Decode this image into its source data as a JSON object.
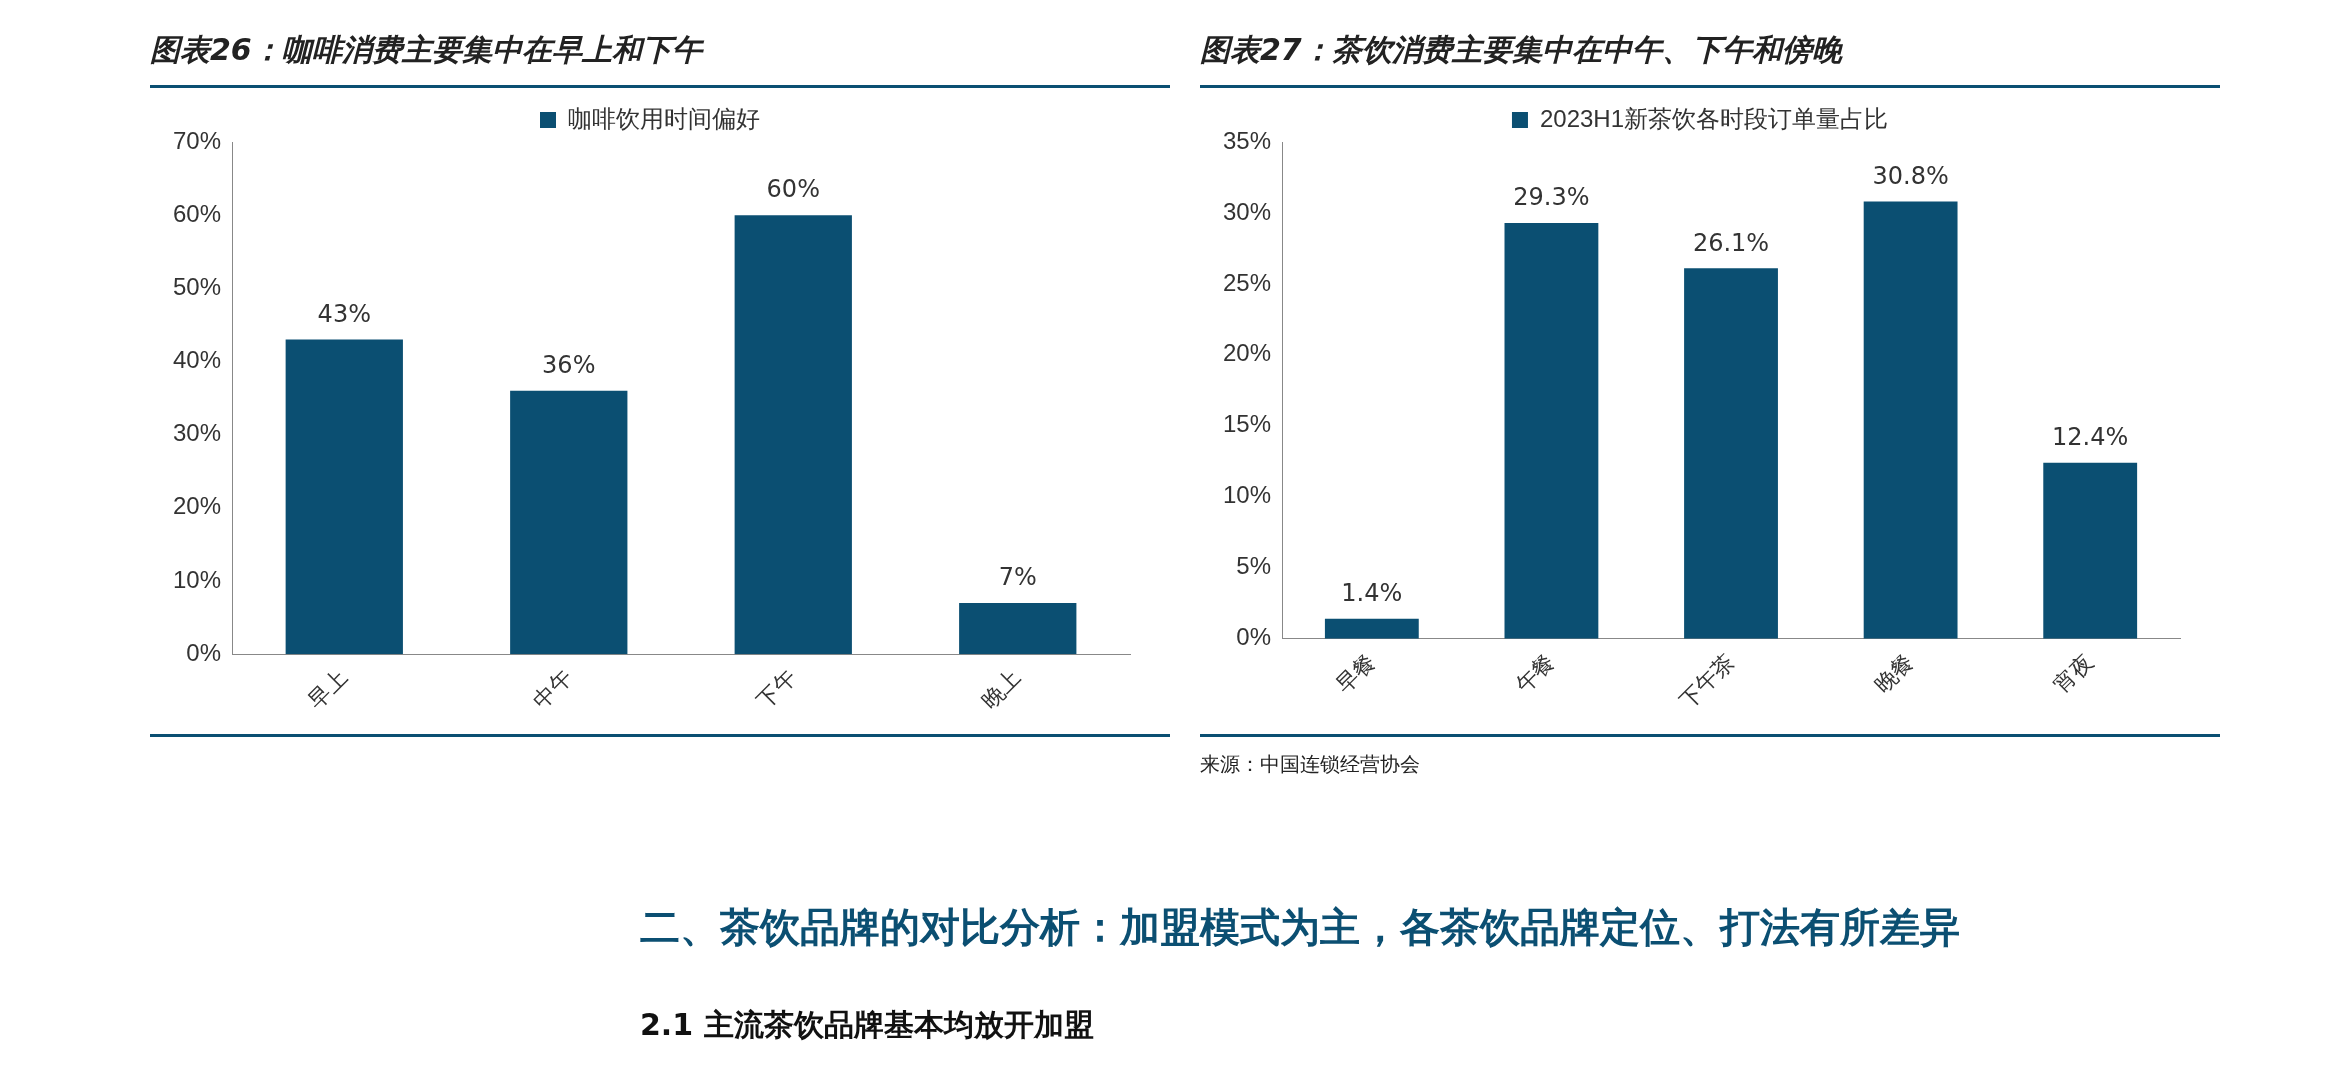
{
  "chart_data": [
    {
      "type": "bar",
      "title": "图表26：咖啡消费主要集中在早上和下午",
      "categories": [
        "早上",
        "中午",
        "下午",
        "晚上"
      ],
      "legend": "top",
      "series": [
        {
          "name": "咖啡饮用时间偏好",
          "color": "#0b4f72",
          "values": [
            43,
            36,
            60,
            7
          ],
          "value_labels": [
            "43%",
            "36%",
            "60%",
            "7%"
          ]
        }
      ],
      "ylim": [
        0,
        70
      ],
      "yticks": [
        {
          "value": 0,
          "label": "0%"
        },
        {
          "value": 10,
          "label": "10%"
        },
        {
          "value": 20,
          "label": "20%"
        },
        {
          "value": 30,
          "label": "30%"
        },
        {
          "value": 40,
          "label": "40%"
        },
        {
          "value": 50,
          "label": "50%"
        },
        {
          "value": 60,
          "label": "60%"
        },
        {
          "value": 70,
          "label": "70%"
        }
      ]
    },
    {
      "type": "bar",
      "title": "图表27：茶饮消费主要集中在中午、下午和傍晚",
      "categories": [
        "早餐",
        "午餐",
        "下午茶",
        "晚餐",
        "宵夜"
      ],
      "legend": "top",
      "series": [
        {
          "name": "2023H1新茶饮各时段订单量占比",
          "color": "#0b4f72",
          "values": [
            1.4,
            29.3,
            26.1,
            30.8,
            12.4
          ],
          "value_labels": [
            "1.4%",
            "29.3%",
            "26.1%",
            "30.8%",
            "12.4%"
          ]
        }
      ],
      "ylim": [
        0,
        35
      ],
      "yticks": [
        {
          "value": 0,
          "label": "0%"
        },
        {
          "value": 5,
          "label": "5%"
        },
        {
          "value": 10,
          "label": "10%"
        },
        {
          "value": 15,
          "label": "15%"
        },
        {
          "value": 20,
          "label": "20%"
        },
        {
          "value": 25,
          "label": "25%"
        },
        {
          "value": 30,
          "label": "30%"
        },
        {
          "value": 35,
          "label": "35%"
        }
      ],
      "annotations": [
        "来源：中国连锁经营协会"
      ]
    },
    {
      "type": "other",
      "annotations": [
        "二、茶饮品牌的对比分析：加盟模式为主，各茶饮品牌定位、打法有所差异",
        "2.1 主流茶饮品牌基本均放开加盟"
      ]
    }
  ]
}
